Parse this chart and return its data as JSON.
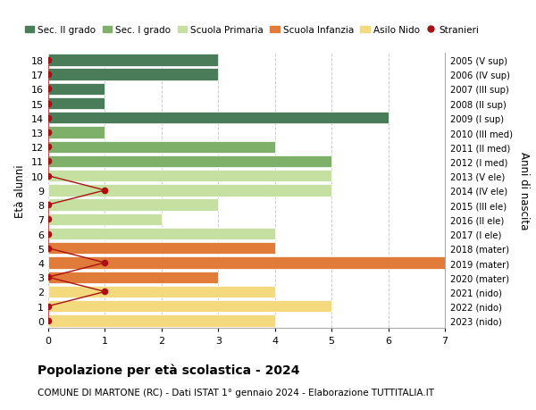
{
  "ages": [
    18,
    17,
    16,
    15,
    14,
    13,
    12,
    11,
    10,
    9,
    8,
    7,
    6,
    5,
    4,
    3,
    2,
    1,
    0
  ],
  "right_labels": [
    "2005 (V sup)",
    "2006 (IV sup)",
    "2007 (III sup)",
    "2008 (II sup)",
    "2009 (I sup)",
    "2010 (III med)",
    "2011 (II med)",
    "2012 (I med)",
    "2013 (V ele)",
    "2014 (IV ele)",
    "2015 (III ele)",
    "2016 (II ele)",
    "2017 (I ele)",
    "2018 (mater)",
    "2019 (mater)",
    "2020 (mater)",
    "2021 (nido)",
    "2022 (nido)",
    "2023 (nido)"
  ],
  "bar_values": [
    3,
    3,
    1,
    1,
    6,
    1,
    4,
    5,
    5,
    5,
    3,
    2,
    4,
    4,
    7,
    3,
    4,
    5,
    4
  ],
  "bar_colors": [
    "#4a7c59",
    "#4a7c59",
    "#4a7c59",
    "#4a7c59",
    "#4a7c59",
    "#7fb069",
    "#7fb069",
    "#7fb069",
    "#c5e0a0",
    "#c5e0a0",
    "#c5e0a0",
    "#c5e0a0",
    "#c5e0a0",
    "#e07b39",
    "#e07b39",
    "#e07b39",
    "#f5d97e",
    "#f5d97e",
    "#f5d97e"
  ],
  "stranieri_ages": [
    18,
    17,
    16,
    15,
    14,
    13,
    12,
    11,
    10,
    9,
    8,
    7,
    6,
    5,
    4,
    3,
    2,
    1,
    0
  ],
  "stranieri_values": [
    0,
    0,
    0,
    0,
    0,
    0,
    0,
    0,
    0,
    1,
    0,
    0,
    0,
    0,
    1,
    0,
    1,
    0,
    0
  ],
  "stranieri_color": "#aa1111",
  "legend_labels": [
    "Sec. II grado",
    "Sec. I grado",
    "Scuola Primaria",
    "Scuola Infanzia",
    "Asilo Nido",
    "Stranieri"
  ],
  "legend_colors": [
    "#4a7c59",
    "#7fb069",
    "#c5e0a0",
    "#e07b39",
    "#f5d97e",
    "#aa1111"
  ],
  "title": "Popolazione per età scolastica - 2024",
  "subtitle": "COMUNE DI MARTONE (RC) - Dati ISTAT 1° gennaio 2024 - Elaborazione TUTTITALIA.IT",
  "ylabel_left": "Età alunni",
  "ylabel_right": "Anni di nascita",
  "xlim": [
    0,
    7
  ],
  "background_color": "#ffffff",
  "bar_edge_color": "#ffffff",
  "grid_color": "#cccccc"
}
